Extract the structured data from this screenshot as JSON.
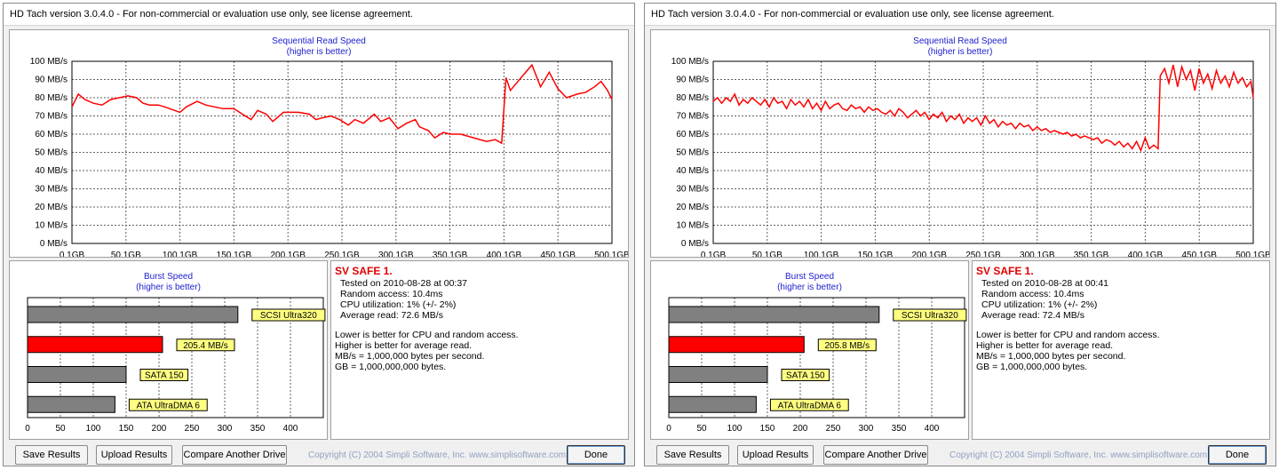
{
  "colors": {
    "line": "#ff0000",
    "title_blue": "#2020d0",
    "bar_red": "#ff0000",
    "bar_gray": "#808080",
    "label_yellow": "#ffff80"
  },
  "windows": [
    {
      "title": "HD Tach version 3.0.4.0  - For non-commercial or evaluation use only, see license agreement.",
      "seq_title": "Sequential Read Speed",
      "seq_subtitle": "(higher is better)",
      "burst_title": "Burst Speed",
      "burst_subtitle": "(higher is better)",
      "drive_name": "SV SAFE 1.",
      "info": [
        "Tested on 2010-08-28 at 00:37",
        "Random access: 10.4ms",
        "CPU utilization: 1% (+/- 2%)",
        "Average read: 72.6 MB/s"
      ],
      "notes": [
        "Lower is better for CPU and random access.",
        "Higher is better for average read.",
        "MB/s = 1,000,000 bytes per second.",
        "GB = 1,000,000,000 bytes."
      ],
      "buttons": {
        "save": "Save Results",
        "upload": "Upload Results",
        "compare": "Compare Another Drive",
        "done": "Done"
      },
      "copyright": "Copyright (C) 2004 Simpli Software, Inc. www.simplisoftware.com"
    },
    {
      "title": "HD Tach version 3.0.4.0  - For non-commercial or evaluation use only, see license agreement.",
      "seq_title": "Sequential Read Speed",
      "seq_subtitle": "(higher is better)",
      "burst_title": "Burst Speed",
      "burst_subtitle": "(higher is better)",
      "drive_name": "SV SAFE 1.",
      "info": [
        "Tested on 2010-08-28 at 00:41",
        "Random access: 10.4ms",
        "CPU utilization: 1% (+/- 2%)",
        "Average read: 72.4 MB/s"
      ],
      "notes": [
        "Lower is better for CPU and random access.",
        "Higher is better for average read.",
        "MB/s = 1,000,000 bytes per second.",
        "GB = 1,000,000,000 bytes."
      ],
      "buttons": {
        "save": "Save Results",
        "upload": "Upload Results",
        "compare": "Compare Another Drive",
        "done": "Done"
      },
      "copyright": "Copyright (C) 2004 Simpli Software, Inc. www.simplisoftware.com"
    }
  ],
  "chart_data": [
    {
      "type": "line",
      "title": "Sequential Read Speed",
      "subtitle": "(higher is better)",
      "xlim": [
        0.1,
        500.1
      ],
      "ylim": [
        0,
        100
      ],
      "x_ticks": [
        "0.1GB",
        "50.1GB",
        "100.1GB",
        "150.1GB",
        "200.1GB",
        "250.1GB",
        "300.1GB",
        "350.1GB",
        "400.1GB",
        "450.1GB",
        "500.1GB"
      ],
      "y_ticks": [
        "0 MB/s",
        "10 MB/s",
        "20 MB/s",
        "30 MB/s",
        "40 MB/s",
        "50 MB/s",
        "60 MB/s",
        "70 MB/s",
        "80 MB/s",
        "90 MB/s",
        "100 MB/s"
      ],
      "grid": true,
      "series": [
        {
          "x": [
            0.1,
            6,
            12,
            20,
            28,
            36,
            44,
            52,
            60,
            66,
            72,
            80,
            86,
            100,
            106,
            116,
            124,
            132,
            140,
            150,
            158,
            166,
            172,
            180,
            186,
            196,
            210,
            220,
            226,
            232,
            240,
            248,
            256,
            262,
            270,
            280,
            286,
            294,
            302,
            310,
            318,
            322,
            330,
            336,
            344,
            350,
            360,
            372,
            384,
            392,
            398,
            402,
            406,
            416,
            426,
            434,
            442,
            450,
            458,
            468,
            476,
            484,
            490,
            496,
            500.1
          ],
          "y": [
            75,
            82,
            79,
            77,
            76,
            79,
            80,
            81,
            80,
            77,
            76,
            76,
            75,
            72,
            75,
            78,
            76,
            75,
            74,
            74,
            71,
            68,
            73,
            71,
            67,
            72,
            72,
            71,
            68,
            69,
            70,
            68,
            65,
            68,
            66,
            71,
            67,
            69,
            63,
            66,
            68,
            64,
            62,
            58,
            61,
            60,
            60,
            58,
            56,
            57,
            55,
            91,
            84,
            91,
            98,
            86,
            94,
            85,
            80,
            82,
            83,
            86,
            89,
            84,
            79
          ]
        }
      ]
    },
    {
      "type": "bar",
      "title": "Burst Speed",
      "subtitle": "(higher is better)",
      "orientation": "horizontal",
      "xlim": [
        0,
        450
      ],
      "x_ticks": [
        0,
        50,
        100,
        150,
        200,
        250,
        300,
        350,
        400
      ],
      "grid": true,
      "categories": [
        "SCSI Ultra320",
        "205.4 MB/s",
        "SATA 150",
        "ATA UltraDMA 6"
      ],
      "values": [
        320,
        205.4,
        150,
        133
      ],
      "highlight_index": 1
    },
    {
      "type": "line",
      "title": "Sequential Read Speed",
      "subtitle": "(higher is better)",
      "xlim": [
        0.1,
        500.1
      ],
      "ylim": [
        0,
        100
      ],
      "x_ticks": [
        "0.1GB",
        "50.1GB",
        "100.1GB",
        "150.1GB",
        "200.1GB",
        "250.1GB",
        "300.1GB",
        "350.1GB",
        "400.1GB",
        "450.1GB",
        "500.1GB"
      ],
      "y_ticks": [
        "0 MB/s",
        "10 MB/s",
        "20 MB/s",
        "30 MB/s",
        "40 MB/s",
        "50 MB/s",
        "60 MB/s",
        "70 MB/s",
        "80 MB/s",
        "90 MB/s",
        "100 MB/s"
      ],
      "grid": true,
      "series": [
        {
          "x": [
            0.1,
            4,
            8,
            12,
            16,
            20,
            24,
            28,
            32,
            36,
            40,
            44,
            48,
            52,
            56,
            60,
            64,
            68,
            72,
            76,
            80,
            84,
            88,
            92,
            96,
            100,
            104,
            108,
            112,
            116,
            120,
            124,
            128,
            132,
            136,
            140,
            144,
            148,
            152,
            156,
            160,
            164,
            168,
            172,
            176,
            180,
            184,
            188,
            192,
            196,
            200,
            204,
            208,
            212,
            216,
            220,
            224,
            228,
            232,
            236,
            240,
            244,
            248,
            252,
            256,
            260,
            264,
            268,
            272,
            276,
            280,
            284,
            288,
            292,
            296,
            300,
            304,
            308,
            312,
            316,
            320,
            324,
            328,
            332,
            336,
            340,
            344,
            348,
            352,
            356,
            360,
            364,
            368,
            372,
            376,
            380,
            384,
            388,
            392,
            396,
            400,
            404,
            408,
            412,
            414,
            418,
            422,
            426,
            430,
            434,
            438,
            442,
            446,
            450,
            454,
            458,
            462,
            466,
            470,
            474,
            478,
            482,
            486,
            490,
            494,
            498,
            500.1
          ],
          "y": [
            78,
            80,
            77,
            80,
            78,
            82,
            76,
            79,
            77,
            80,
            78,
            76,
            79,
            75,
            80,
            77,
            78,
            74,
            79,
            76,
            78,
            75,
            79,
            74,
            77,
            73,
            78,
            74,
            76,
            77,
            74,
            73,
            76,
            74,
            75,
            72,
            75,
            73,
            74,
            72,
            71,
            73,
            70,
            74,
            72,
            69,
            71,
            73,
            70,
            72,
            68,
            71,
            69,
            72,
            67,
            70,
            68,
            71,
            66,
            69,
            67,
            69,
            65,
            70,
            66,
            68,
            64,
            67,
            65,
            66,
            63,
            66,
            64,
            65,
            62,
            64,
            62,
            63,
            61,
            62,
            61,
            60,
            61,
            59,
            60,
            58,
            59,
            58,
            57,
            58,
            55,
            57,
            56,
            54,
            56,
            53,
            55,
            52,
            56,
            51,
            58,
            52,
            54,
            52,
            92,
            96,
            88,
            98,
            86,
            97,
            90,
            95,
            84,
            96,
            88,
            93,
            85,
            95,
            88,
            92,
            86,
            94,
            88,
            91,
            86,
            89,
            80
          ],
          "name": ""
        }
      ]
    },
    {
      "type": "bar",
      "title": "Burst Speed",
      "subtitle": "(higher is better)",
      "orientation": "horizontal",
      "xlim": [
        0,
        450
      ],
      "x_ticks": [
        0,
        50,
        100,
        150,
        200,
        250,
        300,
        350,
        400
      ],
      "grid": true,
      "categories": [
        "SCSI Ultra320",
        "205.8 MB/s",
        "SATA 150",
        "ATA UltraDMA 6"
      ],
      "values": [
        320,
        205.8,
        150,
        133
      ],
      "highlight_index": 1
    }
  ]
}
